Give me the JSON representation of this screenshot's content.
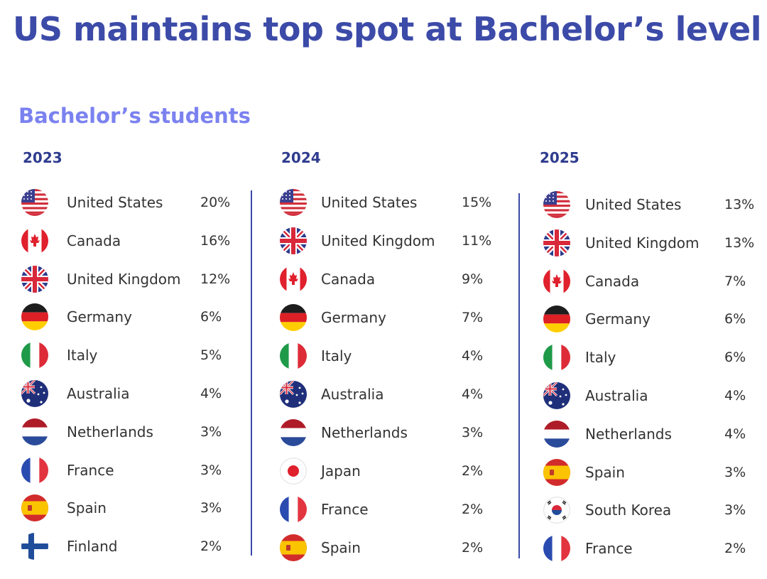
{
  "title": "US maintains top spot at Bachelor’s level",
  "subtitle": "Bachelor’s students",
  "colors": {
    "title": "#3c4aa8",
    "subtitle": "#7b82ef",
    "year": "#2f3c8f",
    "divider": "#3c4aa8",
    "text": "#333333"
  },
  "chart_data": {
    "type": "table",
    "title": "US maintains top spot at Bachelor’s level",
    "subtitle": "Bachelor’s students",
    "unit": "%",
    "series": [
      {
        "name": "2023",
        "rows": [
          {
            "country": "United States",
            "value": 20,
            "label": "20%",
            "flag": "us-flag-icon"
          },
          {
            "country": "Canada",
            "value": 16,
            "label": "16%",
            "flag": "canada-flag-icon"
          },
          {
            "country": "United Kingdom",
            "value": 12,
            "label": "12%",
            "flag": "uk-flag-icon"
          },
          {
            "country": "Germany",
            "value": 6,
            "label": "6%",
            "flag": "germany-flag-icon"
          },
          {
            "country": "Italy",
            "value": 5,
            "label": "5%",
            "flag": "italy-flag-icon"
          },
          {
            "country": "Australia",
            "value": 4,
            "label": "4%",
            "flag": "australia-flag-icon"
          },
          {
            "country": "Netherlands",
            "value": 3,
            "label": "3%",
            "flag": "netherlands-flag-icon"
          },
          {
            "country": "France",
            "value": 3,
            "label": "3%",
            "flag": "france-flag-icon"
          },
          {
            "country": "Spain",
            "value": 3,
            "label": "3%",
            "flag": "spain-flag-icon"
          },
          {
            "country": "Finland",
            "value": 2,
            "label": "2%",
            "flag": "finland-flag-icon"
          }
        ]
      },
      {
        "name": "2024",
        "rows": [
          {
            "country": "United States",
            "value": 15,
            "label": "15%",
            "flag": "us-flag-icon"
          },
          {
            "country": "United Kingdom",
            "value": 11,
            "label": "11%",
            "flag": "uk-flag-icon"
          },
          {
            "country": "Canada",
            "value": 9,
            "label": "9%",
            "flag": "canada-flag-icon"
          },
          {
            "country": "Germany",
            "value": 7,
            "label": "7%",
            "flag": "germany-flag-icon"
          },
          {
            "country": "Italy",
            "value": 4,
            "label": "4%",
            "flag": "italy-flag-icon"
          },
          {
            "country": "Australia",
            "value": 4,
            "label": "4%",
            "flag": "australia-flag-icon"
          },
          {
            "country": "Netherlands",
            "value": 3,
            "label": "3%",
            "flag": "netherlands-flag-icon"
          },
          {
            "country": "Japan",
            "value": 2,
            "label": "2%",
            "flag": "japan-flag-icon"
          },
          {
            "country": "France",
            "value": 2,
            "label": "2%",
            "flag": "france-flag-icon"
          },
          {
            "country": "Spain",
            "value": 2,
            "label": "2%",
            "flag": "spain-flag-icon"
          }
        ]
      },
      {
        "name": "2025",
        "rows": [
          {
            "country": "United States",
            "value": 13,
            "label": "13%",
            "flag": "us-flag-icon"
          },
          {
            "country": "United Kingdom",
            "value": 13,
            "label": "13%",
            "flag": "uk-flag-icon"
          },
          {
            "country": "Canada",
            "value": 7,
            "label": "7%",
            "flag": "canada-flag-icon"
          },
          {
            "country": "Germany",
            "value": 6,
            "label": "6%",
            "flag": "germany-flag-icon"
          },
          {
            "country": "Italy",
            "value": 6,
            "label": "6%",
            "flag": "italy-flag-icon"
          },
          {
            "country": "Australia",
            "value": 4,
            "label": "4%",
            "flag": "australia-flag-icon"
          },
          {
            "country": "Netherlands",
            "value": 4,
            "label": "4%",
            "flag": "netherlands-flag-icon"
          },
          {
            "country": "Spain",
            "value": 3,
            "label": "3%",
            "flag": "spain-flag-icon"
          },
          {
            "country": "South Korea",
            "value": 3,
            "label": "3%",
            "flag": "south-korea-flag-icon"
          },
          {
            "country": "France",
            "value": 2,
            "label": "2%",
            "flag": "france-flag-icon"
          }
        ]
      }
    ]
  }
}
